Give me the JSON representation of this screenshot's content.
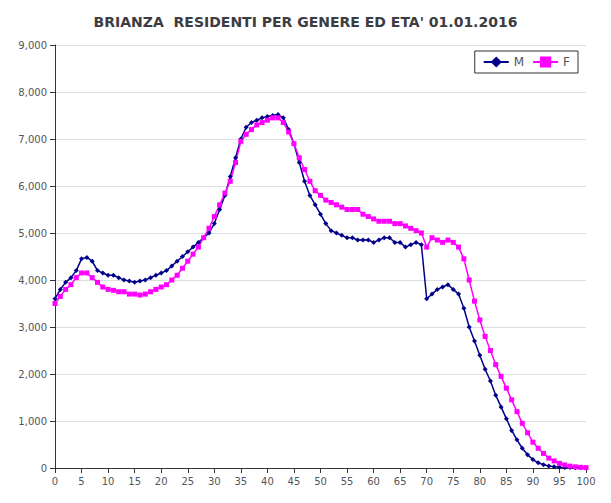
{
  "chart_data": {
    "type": "line",
    "title": "BRIANZA  RESIDENTI PER GENERE ED ETA' 01.01.2016",
    "x": [
      0,
      1,
      2,
      3,
      4,
      5,
      6,
      7,
      8,
      9,
      10,
      11,
      12,
      13,
      14,
      15,
      16,
      17,
      18,
      19,
      20,
      21,
      22,
      23,
      24,
      25,
      26,
      27,
      28,
      29,
      30,
      31,
      32,
      33,
      34,
      35,
      36,
      37,
      38,
      39,
      40,
      41,
      42,
      43,
      44,
      45,
      46,
      47,
      48,
      49,
      50,
      51,
      52,
      53,
      54,
      55,
      56,
      57,
      58,
      59,
      60,
      61,
      62,
      63,
      64,
      65,
      66,
      67,
      68,
      69,
      70,
      71,
      72,
      73,
      74,
      75,
      76,
      77,
      78,
      79,
      80,
      81,
      82,
      83,
      84,
      85,
      86,
      87,
      88,
      89,
      90,
      91,
      92,
      93,
      94,
      95,
      96,
      97,
      98,
      99,
      100
    ],
    "series": [
      {
        "name": "M",
        "color": "#00008B",
        "marker": "diamond",
        "values": [
          3600,
          3800,
          3950,
          4050,
          4200,
          4450,
          4480,
          4400,
          4200,
          4150,
          4100,
          4100,
          4050,
          4000,
          3980,
          3950,
          3980,
          4000,
          4050,
          4100,
          4150,
          4200,
          4300,
          4400,
          4500,
          4600,
          4700,
          4800,
          4900,
          5000,
          5200,
          5500,
          5800,
          6200,
          6600,
          7000,
          7250,
          7350,
          7400,
          7450,
          7480,
          7500,
          7520,
          7450,
          7200,
          6900,
          6500,
          6100,
          5800,
          5600,
          5400,
          5200,
          5050,
          5000,
          4950,
          4900,
          4900,
          4850,
          4850,
          4850,
          4800,
          4850,
          4900,
          4900,
          4800,
          4800,
          4700,
          4750,
          4800,
          4750,
          3600,
          3700,
          3800,
          3850,
          3900,
          3800,
          3700,
          3400,
          3000,
          2700,
          2400,
          2100,
          1850,
          1550,
          1300,
          1050,
          800,
          600,
          420,
          280,
          180,
          110,
          70,
          45,
          25,
          15,
          10,
          8,
          5,
          3,
          2
        ]
      },
      {
        "name": "F",
        "color": "#FF00FF",
        "marker": "square",
        "values": [
          3500,
          3650,
          3800,
          3900,
          4050,
          4150,
          4150,
          4050,
          3950,
          3850,
          3800,
          3780,
          3750,
          3750,
          3700,
          3700,
          3680,
          3700,
          3750,
          3800,
          3850,
          3900,
          4000,
          4100,
          4250,
          4400,
          4550,
          4700,
          4900,
          5100,
          5350,
          5600,
          5850,
          6100,
          6500,
          6950,
          7100,
          7200,
          7300,
          7350,
          7400,
          7450,
          7450,
          7350,
          7150,
          6900,
          6600,
          6350,
          6100,
          5900,
          5800,
          5700,
          5650,
          5600,
          5550,
          5500,
          5500,
          5500,
          5400,
          5350,
          5300,
          5250,
          5250,
          5250,
          5200,
          5200,
          5150,
          5100,
          5050,
          5000,
          4700,
          4900,
          4850,
          4800,
          4850,
          4800,
          4700,
          4450,
          4000,
          3550,
          3150,
          2800,
          2500,
          2200,
          1950,
          1700,
          1450,
          1200,
          950,
          750,
          550,
          420,
          310,
          210,
          150,
          100,
          65,
          40,
          25,
          15,
          8
        ]
      }
    ],
    "xlim": [
      0,
      100
    ],
    "xticks": [
      0,
      5,
      10,
      15,
      20,
      25,
      30,
      35,
      40,
      45,
      50,
      55,
      60,
      65,
      70,
      75,
      80,
      85,
      90,
      95,
      100
    ],
    "ylim": [
      0,
      9000
    ],
    "yticks": [
      0,
      1000,
      2000,
      3000,
      4000,
      5000,
      6000,
      7000,
      8000,
      9000
    ],
    "grid": "y",
    "legend": "upper right"
  }
}
